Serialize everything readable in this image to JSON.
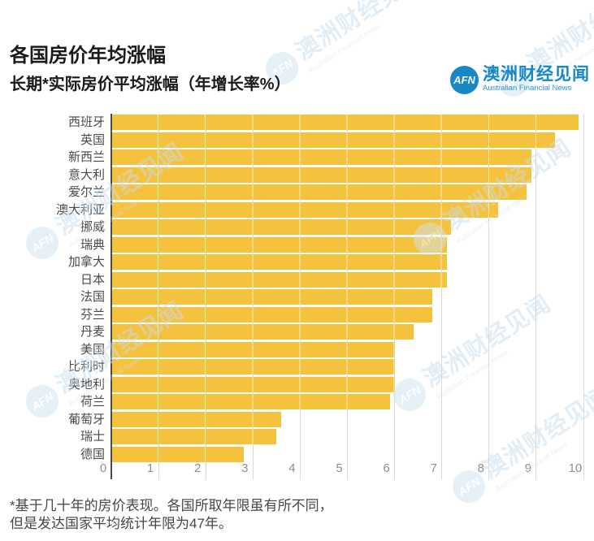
{
  "header": {
    "title": "各国房价年均涨幅",
    "subtitle": "长期*实际房价平均涨幅（年增长率%）",
    "logo": {
      "abbr": "AFN",
      "name_zh": "澳洲财经见闻",
      "name_en": "Australian Financial News"
    }
  },
  "watermark": {
    "abbr": "AFN",
    "text_zh": "澳洲财经见闻",
    "text_en": "Australian Financial News"
  },
  "chart_data": {
    "type": "bar",
    "orientation": "horizontal",
    "title": "各国房价年均涨幅",
    "subtitle": "长期*实际房价平均涨幅（年增长率%）",
    "categories": [
      "西班牙",
      "英国",
      "新西兰",
      "意大利",
      "爱尔兰",
      "澳大利亚",
      "挪威",
      "瑞典",
      "加拿大",
      "日本",
      "法国",
      "芬兰",
      "丹麦",
      "美国",
      "比利时",
      "奥地利",
      "荷兰",
      "葡萄牙",
      "瑞士",
      "德国"
    ],
    "values": [
      9.9,
      9.4,
      8.9,
      8.9,
      8.8,
      8.2,
      7.2,
      7.1,
      7.1,
      7.1,
      6.8,
      6.8,
      6.4,
      6.0,
      6.0,
      6.0,
      5.9,
      3.6,
      3.5,
      2.8
    ],
    "xlabel": "",
    "ylabel": "",
    "xlim": [
      0,
      10
    ],
    "x_ticks": [
      0,
      1,
      2,
      3,
      4,
      5,
      6,
      7,
      8,
      9,
      10
    ],
    "grid": true,
    "legend": false,
    "bar_color": "#F5C23E"
  },
  "footnote": {
    "line1": "*基于几十年的房价表现。各国所取年限虽有所不同，",
    "line2": "但是发达国家平均统计年限为47年。"
  },
  "colors": {
    "bar": "#F5C23E",
    "brand_blue": "#1787C6",
    "title_text": "#1A1A1A",
    "label_text": "#4A4A4A",
    "tick_text": "#8E8E8E",
    "gridline": "#D9D9D9",
    "axis": "#4A4A4A",
    "background": "#FFFFFF",
    "watermark": "#C9DDEE"
  }
}
